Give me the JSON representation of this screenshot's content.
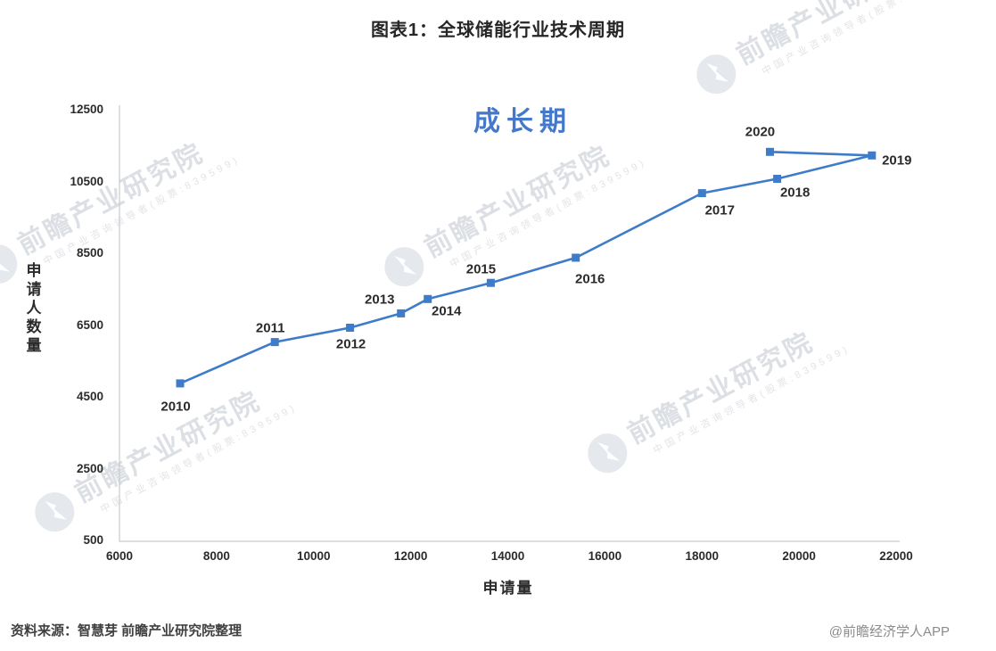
{
  "page": {
    "title": "图表1：全球储能行业技术周期"
  },
  "annotation": {
    "text": "成长期",
    "color": "#4478CA"
  },
  "axes": {
    "x_title": "申请量",
    "y_title": "申请人数量"
  },
  "footer": {
    "source": "资料来源：智慧芽 前瞻产业研究院整理",
    "credit": "@前瞻经济学人APP"
  },
  "watermark": {
    "main": "前瞻产业研究院",
    "sub": "中国产业咨询领导者(股票:839599)"
  },
  "chart_data": {
    "type": "line",
    "title": "图表1：全球储能行业技术周期",
    "xlabel": "申请量",
    "ylabel": "申请人数量",
    "xlim": [
      6000,
      22000
    ],
    "ylim": [
      500,
      12500
    ],
    "x_ticks": [
      6000,
      8000,
      10000,
      12000,
      14000,
      16000,
      18000,
      20000,
      22000
    ],
    "y_ticks": [
      500,
      2500,
      4500,
      6500,
      8500,
      10500,
      12500
    ],
    "grid": false,
    "legend": "none",
    "marker": "square",
    "colors": {
      "line": "#3E7BC9",
      "annotation": "#4478CA"
    },
    "annotation": "成长期",
    "series": [
      {
        "name": "全球储能行业技术周期",
        "points": [
          {
            "label": "2010",
            "x": 7250,
            "y": 4900
          },
          {
            "label": "2011",
            "x": 9200,
            "y": 6050
          },
          {
            "label": "2012",
            "x": 10750,
            "y": 6450
          },
          {
            "label": "2013",
            "x": 11800,
            "y": 6850
          },
          {
            "label": "2014",
            "x": 12350,
            "y": 7250
          },
          {
            "label": "2015",
            "x": 13650,
            "y": 7700
          },
          {
            "label": "2016",
            "x": 15400,
            "y": 8400
          },
          {
            "label": "2017",
            "x": 18000,
            "y": 10200
          },
          {
            "label": "2018",
            "x": 19550,
            "y": 10600
          },
          {
            "label": "2019",
            "x": 21500,
            "y": 11250
          },
          {
            "label": "2020",
            "x": 19400,
            "y": 11350
          }
        ]
      }
    ]
  }
}
